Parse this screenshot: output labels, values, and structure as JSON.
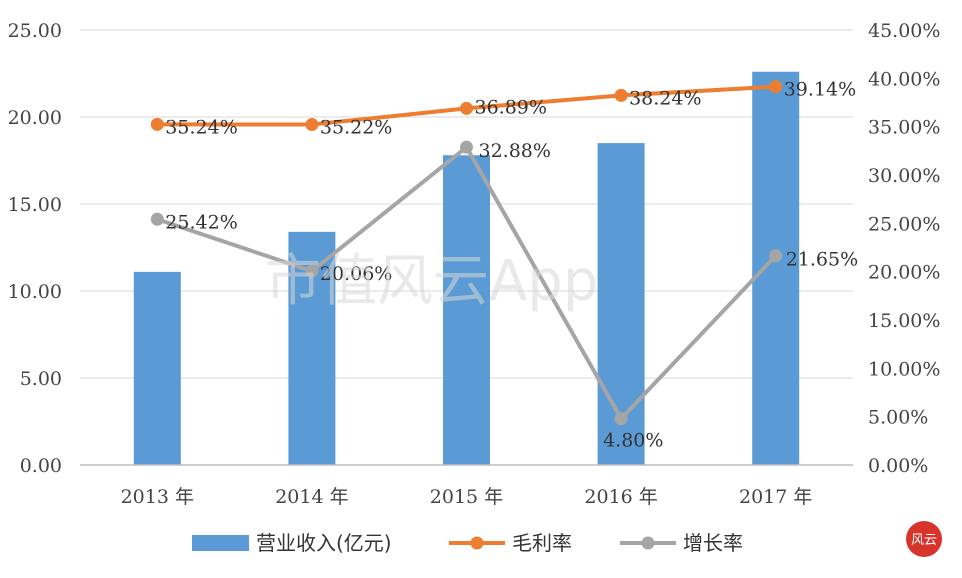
{
  "chart_data": {
    "type": "bar",
    "categories": [
      "2013 年",
      "2014 年",
      "2015 年",
      "2016 年",
      "2017 年"
    ],
    "series": [
      {
        "name": "营业收入(亿元)",
        "type": "bar",
        "axis": "left",
        "values": [
          11.1,
          13.4,
          17.8,
          18.5,
          22.6
        ],
        "color": "#5b9bd5"
      },
      {
        "name": "毛利率",
        "type": "line",
        "axis": "right",
        "values": [
          35.24,
          35.22,
          36.89,
          38.24,
          39.14
        ],
        "labels": [
          "35.24%",
          "35.22%",
          "36.89%",
          "38.24%",
          "39.14%"
        ],
        "color": "#ed7d31"
      },
      {
        "name": "增长率",
        "type": "line",
        "axis": "right",
        "values": [
          25.42,
          20.06,
          32.88,
          4.8,
          21.65
        ],
        "labels": [
          "25.42%",
          "20.06%",
          "32.88%",
          "4.80%",
          "21.65%"
        ],
        "color": "#a5a5a5"
      }
    ],
    "y_left": {
      "range": [
        0,
        25
      ],
      "ticks": [
        "0.00",
        "5.00",
        "10.00",
        "15.00",
        "20.00",
        "25.00"
      ]
    },
    "y_right": {
      "range": [
        0,
        45
      ],
      "ticks": [
        "0.00%",
        "5.00%",
        "10.00%",
        "15.00%",
        "20.00%",
        "25.00%",
        "30.00%",
        "35.00%",
        "40.00%",
        "45.00%"
      ]
    },
    "grid": true,
    "legend": "bottom"
  },
  "watermark": "市值风云App",
  "logo_text": "风云"
}
